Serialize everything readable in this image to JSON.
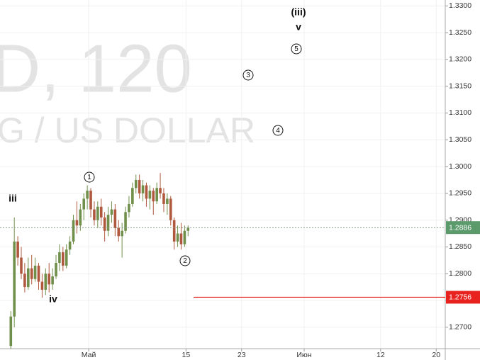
{
  "chart_data": {
    "type": "candlestick",
    "watermark": [
      "D, 120",
      "G / US DOLLAR"
    ],
    "up_color": "#6f8f4a",
    "down_color": "#b0583e",
    "x": [
      -10.2,
      -9.7,
      -9.2,
      -8.7,
      -8.2,
      -7.7,
      -7.2,
      -6.7,
      -6.2,
      -5.7,
      -5.2,
      -4.7,
      -4.2,
      -3.7,
      -3.2,
      -2.7,
      -2.2,
      -1.7,
      -1.2,
      -0.7,
      -0.2,
      0.3,
      0.8,
      1.3,
      1.8,
      2.3,
      2.8,
      3.3,
      3.8,
      4.3,
      4.8,
      5.3,
      5.8,
      6.3,
      6.8,
      7.3,
      7.8,
      8.3,
      8.8,
      9.3,
      9.8,
      10.3,
      10.8,
      11.3,
      11.8,
      12.3,
      12.8,
      13.3,
      13.8,
      14.3,
      14.8,
      15.3
    ],
    "open": [
      1.2665,
      1.272,
      1.286,
      1.283,
      1.28,
      1.2775,
      1.281,
      1.279,
      1.2815,
      1.2785,
      1.277,
      1.28,
      1.278,
      1.2795,
      1.282,
      1.284,
      1.2815,
      1.2845,
      1.286,
      1.29,
      1.289,
      1.292,
      1.294,
      1.2955,
      1.292,
      1.29,
      1.2925,
      1.2905,
      1.288,
      1.291,
      1.292,
      1.2885,
      1.287,
      1.288,
      1.2915,
      1.293,
      1.296,
      1.2975,
      1.295,
      1.2965,
      1.294,
      1.2955,
      1.2935,
      1.296,
      1.295,
      1.293,
      1.294,
      1.29,
      1.286,
      1.2875,
      1.2855,
      1.288
    ],
    "high": [
      1.273,
      1.2905,
      1.287,
      1.285,
      1.282,
      1.283,
      1.2835,
      1.283,
      1.282,
      1.28,
      1.281,
      1.282,
      1.281,
      1.2835,
      1.2855,
      1.285,
      1.2855,
      1.287,
      1.291,
      1.2935,
      1.293,
      1.295,
      1.2965,
      1.296,
      1.2935,
      1.2935,
      1.294,
      1.2915,
      1.2925,
      1.2935,
      1.293,
      1.29,
      1.2895,
      1.2925,
      1.2945,
      1.297,
      1.2985,
      1.2985,
      1.2975,
      1.297,
      1.2965,
      1.296,
      1.297,
      1.2988,
      1.296,
      1.295,
      1.2945,
      1.2905,
      1.289,
      1.2895,
      1.289,
      1.289
    ],
    "low": [
      1.266,
      1.27,
      1.2815,
      1.279,
      1.2765,
      1.277,
      1.278,
      1.2785,
      1.277,
      1.2755,
      1.276,
      1.2765,
      1.277,
      1.279,
      1.2805,
      1.2805,
      1.281,
      1.2835,
      1.2855,
      1.2875,
      1.288,
      1.29,
      1.292,
      1.2905,
      1.289,
      1.2885,
      1.289,
      1.286,
      1.287,
      1.2895,
      1.287,
      1.286,
      1.283,
      1.2875,
      1.2905,
      1.2925,
      1.295,
      1.294,
      1.2935,
      1.2925,
      1.292,
      1.291,
      1.293,
      1.294,
      1.2915,
      1.291,
      1.289,
      1.2845,
      1.285,
      1.2845,
      1.285,
      1.287
    ],
    "close": [
      1.272,
      1.286,
      1.283,
      1.28,
      1.2775,
      1.281,
      1.279,
      1.2815,
      1.2785,
      1.277,
      1.28,
      1.278,
      1.2795,
      1.282,
      1.284,
      1.2815,
      1.2845,
      1.286,
      1.29,
      1.289,
      1.292,
      1.294,
      1.2955,
      1.292,
      1.29,
      1.2925,
      1.2905,
      1.288,
      1.291,
      1.292,
      1.2885,
      1.287,
      1.288,
      1.2915,
      1.293,
      1.296,
      1.2975,
      1.295,
      1.2965,
      1.294,
      1.2955,
      1.2935,
      1.296,
      1.295,
      1.293,
      1.294,
      1.29,
      1.286,
      1.2875,
      1.2855,
      1.288,
      1.2886
    ],
    "xlim": [
      -11.76,
      52.3
    ],
    "xticks": [
      {
        "value": 1,
        "label": "Май"
      },
      15,
      23,
      {
        "value": 32,
        "label": "Июн"
      },
      {
        "value": 43,
        "label": "12"
      },
      {
        "value": 51,
        "label": "20"
      }
    ],
    "ylim": [
      1.266,
      1.3311
    ],
    "yticks": [
      {
        "value": 1.27,
        "label": "1.2700"
      },
      {
        "value": 1.275,
        "label": "1.2750"
      },
      {
        "value": 1.28,
        "label": "1.2800"
      },
      {
        "value": 1.285,
        "label": "1.2850"
      },
      {
        "value": 1.29,
        "label": "1.2900"
      },
      {
        "value": 1.295,
        "label": "1.2950"
      },
      {
        "value": 1.3,
        "label": "1.3000"
      },
      {
        "value": 1.305,
        "label": "1.3050"
      },
      {
        "value": 1.31,
        "label": "1.3100"
      },
      {
        "value": 1.315,
        "label": "1.3150"
      },
      {
        "value": 1.32,
        "label": "1.3200"
      },
      {
        "value": 1.325,
        "label": "1.3250"
      },
      {
        "value": 1.33,
        "label": "1.3300"
      }
    ],
    "grid": true,
    "price_lines": [
      {
        "value": 1.2886,
        "color": "#5b9a6b",
        "style": "dashed"
      },
      {
        "value": 1.2756,
        "color": "#e8231f",
        "style": "solid"
      }
    ],
    "annotations": [
      {
        "text": "(iii)",
        "circled": false
      },
      {
        "text": "v",
        "circled": false
      },
      {
        "text": "5",
        "circled": true
      },
      {
        "text": "3",
        "circled": true
      },
      {
        "text": "4",
        "circled": true
      },
      {
        "text": "1",
        "circled": true
      },
      {
        "text": "2",
        "circled": true
      },
      {
        "text": "iii",
        "circled": false
      },
      {
        "text": "iv",
        "circled": false
      }
    ]
  }
}
